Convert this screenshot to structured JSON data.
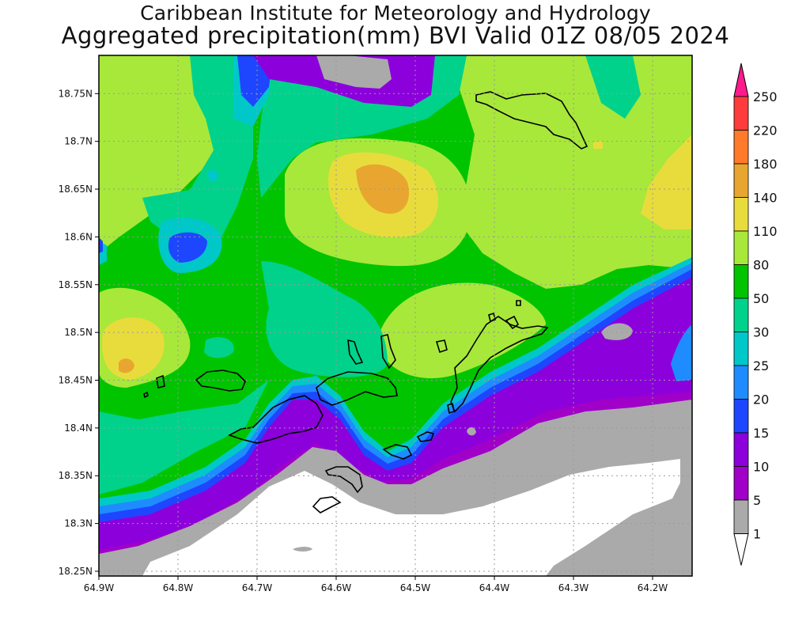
{
  "title": {
    "line1": "Caribbean Institute for Meteorology and Hydrology",
    "line2": "Aggregated precipitation(mm) BVI Valid 01Z 08/05 2024"
  },
  "map": {
    "lon_range": [
      -64.9,
      -64.15
    ],
    "lat_range": [
      18.245,
      18.79
    ],
    "x_ticks": [
      "64.9W",
      "64.8W",
      "64.7W",
      "64.6W",
      "64.5W",
      "64.4W",
      "64.3W",
      "64.2W"
    ],
    "y_ticks": [
      "18.75N",
      "18.7N",
      "18.65N",
      "18.6N",
      "18.55N",
      "18.5N",
      "18.45N",
      "18.4N",
      "18.35N",
      "18.3N",
      "18.25N"
    ],
    "grid": true,
    "background_color": "#00c400"
  },
  "legend": {
    "placement": "right",
    "labels": [
      "250",
      "220",
      "180",
      "140",
      "110",
      "80",
      "50",
      "30",
      "25",
      "20",
      "15",
      "10",
      "5",
      "1"
    ],
    "colors": [
      "#ff1a8c",
      "#ff3c3c",
      "#ff7a2a",
      "#e8a630",
      "#e8dc3c",
      "#a8e83a",
      "#00c400",
      "#00d28c",
      "#00c8c8",
      "#1e8cff",
      "#1e46ff",
      "#8c00dc",
      "#a000c8",
      "#aaaaaa",
      "#ffffff"
    ]
  }
}
